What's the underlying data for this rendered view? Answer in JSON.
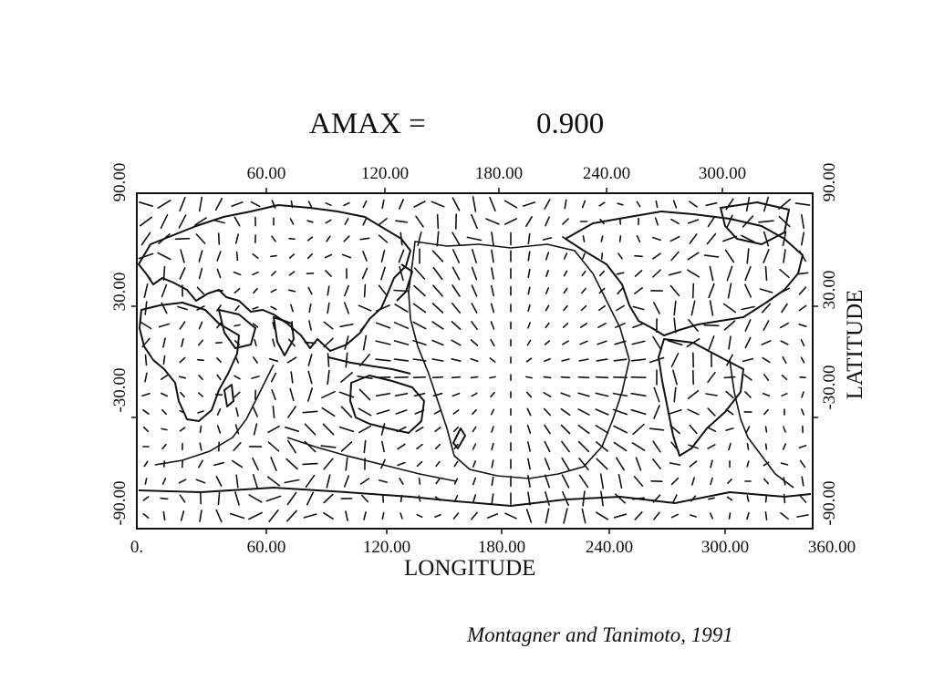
{
  "title": {
    "label": "AMAX =",
    "value": "0.900"
  },
  "top_ticks": [
    "60.00",
    "120.00",
    "180.00",
    "240.00",
    "300.00"
  ],
  "bottom_ticks": [
    "0.",
    "60.00",
    "120.00",
    "180.00",
    "240.00",
    "300.00",
    "360.00"
  ],
  "left_ticks": [
    "90.00",
    "30.00",
    "-30.00",
    "-90.00"
  ],
  "right_ticks": [
    "90.00",
    "30.00",
    "-30.00",
    "-90.00"
  ],
  "x_axis_label": "LONGITUDE",
  "y_axis_label": "LATITUDE",
  "citation": "Montagner and Tanimoto, 1991",
  "map": {
    "projection": "equirectangular",
    "lon_range": [
      0,
      360
    ],
    "lat_range": [
      -90,
      90
    ],
    "line_color": "#111111",
    "content": "world coastlines and plate boundaries with anisotropy fast-axis bars on a regular grid"
  }
}
